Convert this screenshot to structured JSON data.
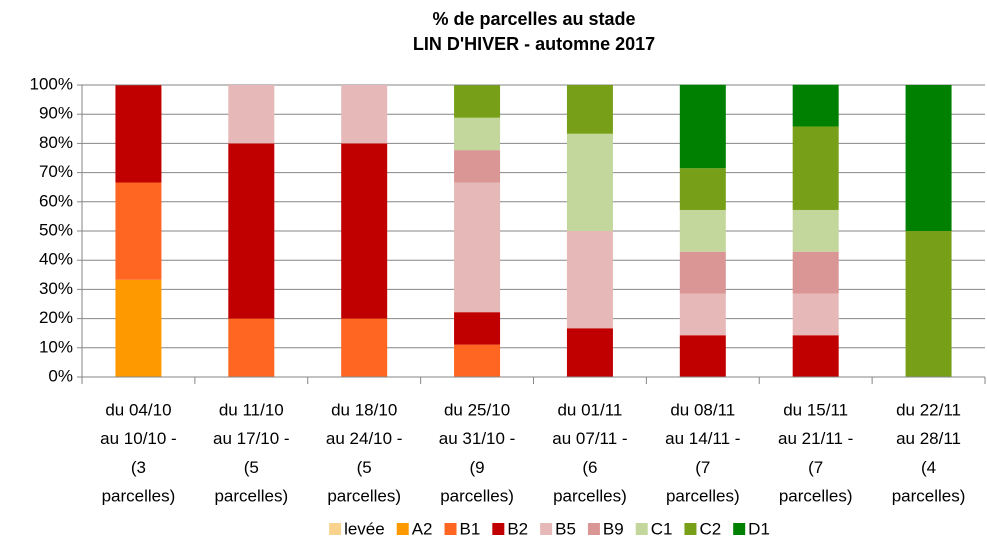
{
  "chart_data": {
    "type": "stacked_bar_100",
    "title": [
      "% de parcelles au stade",
      "LIN D'HIVER - automne 2017"
    ],
    "categories": [
      [
        "du 04/10",
        "au 10/10 -",
        "(3",
        "parcelles)"
      ],
      [
        "du 11/10",
        "au 17/10 -",
        "(5",
        "parcelles)"
      ],
      [
        "du 18/10",
        "au 24/10 -",
        "(5",
        "parcelles)"
      ],
      [
        "du 25/10",
        "au 31/10 -",
        "(9",
        "parcelles)"
      ],
      [
        "du 01/11",
        "au 07/11 -",
        "(6",
        "parcelles)"
      ],
      [
        "du 08/11",
        "au 14/11 -",
        "(7",
        "parcelles)"
      ],
      [
        "du 15/11",
        "au 21/11 -",
        "(7",
        "parcelles)"
      ],
      [
        "du 22/11",
        "au 28/11",
        "(4",
        "parcelles)"
      ]
    ],
    "series": [
      {
        "name": "levée",
        "color": "#f7d38e",
        "values": [
          0,
          0,
          0,
          0,
          0,
          0,
          0,
          0
        ]
      },
      {
        "name": "A2",
        "color": "#ff9900",
        "values": [
          33.3,
          0,
          0,
          0,
          0,
          0,
          0,
          0
        ]
      },
      {
        "name": "B1",
        "color": "#ff6622",
        "values": [
          33.3,
          20,
          20,
          11.1,
          0,
          0,
          0,
          0
        ]
      },
      {
        "name": "B2",
        "color": "#c00000",
        "values": [
          33.3,
          60,
          60,
          11.1,
          16.7,
          14.3,
          14.3,
          0
        ]
      },
      {
        "name": "B5",
        "color": "#e6b9b8",
        "values": [
          0,
          20,
          20,
          44.4,
          33.3,
          14.3,
          14.3,
          0
        ]
      },
      {
        "name": "B9",
        "color": "#d99694",
        "values": [
          0,
          0,
          0,
          11.1,
          0,
          14.3,
          14.3,
          0
        ]
      },
      {
        "name": "C1",
        "color": "#c3d69b",
        "values": [
          0,
          0,
          0,
          11.1,
          33.3,
          14.3,
          14.3,
          0
        ]
      },
      {
        "name": "C2",
        "color": "#77a018",
        "values": [
          0,
          0,
          0,
          11.1,
          16.7,
          14.3,
          28.6,
          50
        ]
      },
      {
        "name": "D1",
        "color": "#008000",
        "values": [
          0,
          0,
          0,
          0,
          0,
          28.6,
          14.3,
          50
        ]
      }
    ],
    "ylim": [
      0,
      100
    ],
    "yticks": [
      {
        "value": 0,
        "label": "0%"
      },
      {
        "value": 10,
        "label": "10%"
      },
      {
        "value": 20,
        "label": "20%"
      },
      {
        "value": 30,
        "label": "30%"
      },
      {
        "value": 40,
        "label": "40%"
      },
      {
        "value": 50,
        "label": "50%"
      },
      {
        "value": 60,
        "label": "60%"
      },
      {
        "value": 70,
        "label": "70%"
      },
      {
        "value": 80,
        "label": "80%"
      },
      {
        "value": 90,
        "label": "90%"
      },
      {
        "value": 100,
        "label": "100%"
      }
    ],
    "grid": true
  }
}
